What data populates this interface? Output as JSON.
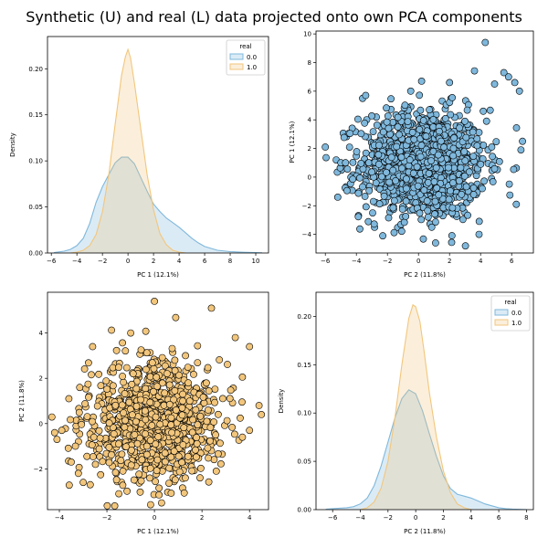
{
  "title": "Synthetic (U) and real (L) data projected onto own PCA components",
  "colors": {
    "series_0": "#7fb8dc",
    "series_1": "#f2c67c",
    "edge": "#000000"
  },
  "chart_data": [
    {
      "type": "area",
      "xlabel": "PC 1 (12.1%)",
      "ylabel": "Density",
      "xlim": [
        -6.3,
        11
      ],
      "ylim": [
        0,
        0.235
      ],
      "xticks": [
        -6,
        -4,
        -2,
        0,
        2,
        4,
        6,
        8,
        10
      ],
      "yticks": [
        0,
        0.05,
        0.1,
        0.15,
        0.2
      ],
      "ytick_labels": [
        "0.00",
        "0.05",
        "0.10",
        "0.15",
        "0.20"
      ],
      "legend": {
        "title": "real",
        "position": "top-right",
        "entries": [
          "0.0",
          "1.0"
        ]
      },
      "series": [
        {
          "name": "0.0",
          "x": [
            -5.8,
            -5,
            -4.5,
            -4,
            -3.5,
            -3,
            -2.5,
            -2,
            -1.5,
            -1,
            -0.5,
            0,
            0.5,
            1,
            1.5,
            2,
            2.5,
            3,
            3.5,
            4,
            4.5,
            5,
            5.5,
            6,
            7,
            8,
            9,
            10,
            10.5
          ],
          "y": [
            0.0005,
            0.002,
            0.004,
            0.008,
            0.016,
            0.032,
            0.055,
            0.072,
            0.085,
            0.098,
            0.104,
            0.104,
            0.097,
            0.082,
            0.067,
            0.053,
            0.045,
            0.038,
            0.033,
            0.028,
            0.022,
            0.016,
            0.011,
            0.007,
            0.003,
            0.0015,
            0.0008,
            0.0004,
            0.0002
          ]
        },
        {
          "name": "1.0",
          "x": [
            -4.5,
            -4,
            -3.5,
            -3,
            -2.5,
            -2,
            -1.5,
            -1,
            -0.5,
            -0.2,
            0,
            0.2,
            0.5,
            1,
            1.5,
            2,
            2.5,
            3,
            3.5,
            4,
            4.5
          ],
          "y": [
            0,
            0.001,
            0.003,
            0.008,
            0.02,
            0.045,
            0.085,
            0.14,
            0.193,
            0.213,
            0.221,
            0.212,
            0.185,
            0.135,
            0.085,
            0.047,
            0.021,
            0.009,
            0.003,
            0.001,
            0
          ]
        }
      ]
    },
    {
      "type": "scatter",
      "xlabel": "PC 2 (11.8%)",
      "ylabel": "PC 1 (12.1%)",
      "xlim": [
        -6.6,
        7.4
      ],
      "ylim": [
        -5.3,
        10.2
      ],
      "xticks": [
        -6,
        -4,
        -2,
        0,
        2,
        4,
        6
      ],
      "yticks": [
        -4,
        -2,
        0,
        2,
        4,
        6,
        8,
        10
      ],
      "series": [
        {
          "name": "",
          "n_points": 1200,
          "x_mean": 0.3,
          "x_sd": 2.0,
          "y_mean": 0.9,
          "y_sd": 1.9,
          "outliers": [
            [
              -6.0,
              2.1
            ],
            [
              -5.3,
              1.2
            ],
            [
              -5.0,
              1.0
            ],
            [
              -4.7,
              1.0
            ],
            [
              -5.2,
              -1.4
            ],
            [
              -3.6,
              5.5
            ],
            [
              -3.4,
              5.7
            ],
            [
              -0.5,
              6.0
            ],
            [
              0.2,
              6.7
            ],
            [
              2.0,
              6.6
            ],
            [
              4.3,
              9.4
            ],
            [
              4.9,
              6.5
            ],
            [
              5.5,
              7.3
            ],
            [
              5.8,
              7.0
            ],
            [
              6.2,
              6.6
            ],
            [
              6.5,
              6.0
            ],
            [
              6.7,
              2.5
            ],
            [
              6.6,
              1.9
            ],
            [
              6.3,
              -1.9
            ],
            [
              3.9,
              -4.0
            ],
            [
              1.1,
              -4.6
            ],
            [
              -2.3,
              -4.1
            ]
          ]
        }
      ]
    },
    {
      "type": "scatter",
      "xlabel": "PC 1 (12.1%)",
      "ylabel": "PC 2 (11.8%)",
      "xlim": [
        -4.5,
        4.8
      ],
      "ylim": [
        -3.8,
        5.8
      ],
      "xticks": [
        -4,
        -2,
        0,
        2,
        4
      ],
      "yticks": [
        -2,
        0,
        2,
        4
      ],
      "series": [
        {
          "name": "",
          "n_points": 1000,
          "x_mean": 0.0,
          "x_sd": 1.4,
          "y_mean": 0.1,
          "y_sd": 1.3,
          "outliers": [
            [
              -4.2,
              -0.4
            ],
            [
              -4.1,
              -0.7
            ],
            [
              -3.9,
              -0.3
            ],
            [
              -3.5,
              -1.7
            ],
            [
              -3.6,
              1.1
            ],
            [
              -2.6,
              3.4
            ],
            [
              -1.0,
              4.0
            ],
            [
              0.0,
              5.4
            ],
            [
              2.4,
              5.1
            ],
            [
              3.4,
              3.8
            ],
            [
              4.0,
              3.4
            ],
            [
              4.5,
              0.4
            ],
            [
              4.4,
              0.8
            ],
            [
              4.0,
              -0.3
            ],
            [
              3.7,
              -0.6
            ],
            [
              2.6,
              -2.1
            ],
            [
              1.3,
              -2.4
            ],
            [
              0.3,
              -3.5
            ],
            [
              -1.5,
              -3.1
            ],
            [
              -2.7,
              -2.7
            ],
            [
              -3.2,
              -2.2
            ]
          ]
        }
      ]
    },
    {
      "type": "area",
      "xlabel": "PC 2 (11.8%)",
      "ylabel": "Density",
      "xlim": [
        -7.2,
        8.5
      ],
      "ylim": [
        0,
        0.225
      ],
      "xticks": [
        -6,
        -4,
        -2,
        0,
        2,
        4,
        6,
        8
      ],
      "yticks": [
        0,
        0.05,
        0.1,
        0.15,
        0.2
      ],
      "ytick_labels": [
        "0.00",
        "0.05",
        "0.10",
        "0.15",
        "0.20"
      ],
      "legend": {
        "title": "real",
        "position": "top-right",
        "entries": [
          "0.0",
          "1.0"
        ]
      },
      "series": [
        {
          "name": "0.0",
          "x": [
            -6.5,
            -6,
            -5.5,
            -5,
            -4.5,
            -4,
            -3.5,
            -3,
            -2.5,
            -2,
            -1.5,
            -1,
            -0.5,
            0,
            0.5,
            1,
            1.5,
            2,
            2.5,
            3,
            3.5,
            4,
            4.5,
            5,
            5.5,
            6,
            6.5,
            7,
            7.5,
            8
          ],
          "y": [
            0.0005,
            0.001,
            0.0015,
            0.002,
            0.003,
            0.006,
            0.012,
            0.025,
            0.045,
            0.07,
            0.095,
            0.115,
            0.124,
            0.12,
            0.102,
            0.078,
            0.055,
            0.035,
            0.022,
            0.016,
            0.014,
            0.012,
            0.009,
            0.006,
            0.004,
            0.002,
            0.001,
            0.0006,
            0.0003,
            0.0001
          ]
        },
        {
          "name": "1.0",
          "x": [
            -4,
            -3.5,
            -3,
            -2.5,
            -2,
            -1.5,
            -1,
            -0.5,
            -0.2,
            0,
            0.3,
            0.6,
            1,
            1.5,
            2,
            2.5,
            3,
            3.5,
            4
          ],
          "y": [
            0,
            0.002,
            0.008,
            0.022,
            0.05,
            0.095,
            0.15,
            0.198,
            0.212,
            0.21,
            0.195,
            0.165,
            0.12,
            0.075,
            0.04,
            0.018,
            0.006,
            0.002,
            0
          ]
        }
      ]
    }
  ]
}
